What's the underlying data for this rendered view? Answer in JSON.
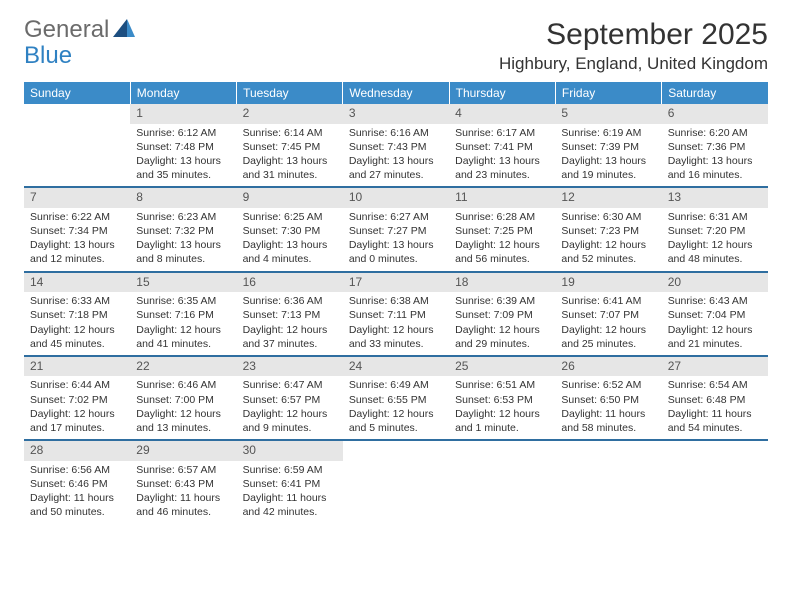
{
  "logo": {
    "word1": "General",
    "word2": "Blue"
  },
  "title": "September 2025",
  "location": "Highbury, England, United Kingdom",
  "colors": {
    "header_bg": "#3b8bc8",
    "row_divider": "#2f6ea0",
    "daynum_bg": "#e6e6e6",
    "text": "#333333",
    "logo_gray": "#6b6b6b",
    "logo_blue": "#2f81c2"
  },
  "weekdays": [
    "Sunday",
    "Monday",
    "Tuesday",
    "Wednesday",
    "Thursday",
    "Friday",
    "Saturday"
  ],
  "weeks": [
    [
      null,
      {
        "n": "1",
        "sr": "Sunrise: 6:12 AM",
        "ss": "Sunset: 7:48 PM",
        "dl": "Daylight: 13 hours and 35 minutes."
      },
      {
        "n": "2",
        "sr": "Sunrise: 6:14 AM",
        "ss": "Sunset: 7:45 PM",
        "dl": "Daylight: 13 hours and 31 minutes."
      },
      {
        "n": "3",
        "sr": "Sunrise: 6:16 AM",
        "ss": "Sunset: 7:43 PM",
        "dl": "Daylight: 13 hours and 27 minutes."
      },
      {
        "n": "4",
        "sr": "Sunrise: 6:17 AM",
        "ss": "Sunset: 7:41 PM",
        "dl": "Daylight: 13 hours and 23 minutes."
      },
      {
        "n": "5",
        "sr": "Sunrise: 6:19 AM",
        "ss": "Sunset: 7:39 PM",
        "dl": "Daylight: 13 hours and 19 minutes."
      },
      {
        "n": "6",
        "sr": "Sunrise: 6:20 AM",
        "ss": "Sunset: 7:36 PM",
        "dl": "Daylight: 13 hours and 16 minutes."
      }
    ],
    [
      {
        "n": "7",
        "sr": "Sunrise: 6:22 AM",
        "ss": "Sunset: 7:34 PM",
        "dl": "Daylight: 13 hours and 12 minutes."
      },
      {
        "n": "8",
        "sr": "Sunrise: 6:23 AM",
        "ss": "Sunset: 7:32 PM",
        "dl": "Daylight: 13 hours and 8 minutes."
      },
      {
        "n": "9",
        "sr": "Sunrise: 6:25 AM",
        "ss": "Sunset: 7:30 PM",
        "dl": "Daylight: 13 hours and 4 minutes."
      },
      {
        "n": "10",
        "sr": "Sunrise: 6:27 AM",
        "ss": "Sunset: 7:27 PM",
        "dl": "Daylight: 13 hours and 0 minutes."
      },
      {
        "n": "11",
        "sr": "Sunrise: 6:28 AM",
        "ss": "Sunset: 7:25 PM",
        "dl": "Daylight: 12 hours and 56 minutes."
      },
      {
        "n": "12",
        "sr": "Sunrise: 6:30 AM",
        "ss": "Sunset: 7:23 PM",
        "dl": "Daylight: 12 hours and 52 minutes."
      },
      {
        "n": "13",
        "sr": "Sunrise: 6:31 AM",
        "ss": "Sunset: 7:20 PM",
        "dl": "Daylight: 12 hours and 48 minutes."
      }
    ],
    [
      {
        "n": "14",
        "sr": "Sunrise: 6:33 AM",
        "ss": "Sunset: 7:18 PM",
        "dl": "Daylight: 12 hours and 45 minutes."
      },
      {
        "n": "15",
        "sr": "Sunrise: 6:35 AM",
        "ss": "Sunset: 7:16 PM",
        "dl": "Daylight: 12 hours and 41 minutes."
      },
      {
        "n": "16",
        "sr": "Sunrise: 6:36 AM",
        "ss": "Sunset: 7:13 PM",
        "dl": "Daylight: 12 hours and 37 minutes."
      },
      {
        "n": "17",
        "sr": "Sunrise: 6:38 AM",
        "ss": "Sunset: 7:11 PM",
        "dl": "Daylight: 12 hours and 33 minutes."
      },
      {
        "n": "18",
        "sr": "Sunrise: 6:39 AM",
        "ss": "Sunset: 7:09 PM",
        "dl": "Daylight: 12 hours and 29 minutes."
      },
      {
        "n": "19",
        "sr": "Sunrise: 6:41 AM",
        "ss": "Sunset: 7:07 PM",
        "dl": "Daylight: 12 hours and 25 minutes."
      },
      {
        "n": "20",
        "sr": "Sunrise: 6:43 AM",
        "ss": "Sunset: 7:04 PM",
        "dl": "Daylight: 12 hours and 21 minutes."
      }
    ],
    [
      {
        "n": "21",
        "sr": "Sunrise: 6:44 AM",
        "ss": "Sunset: 7:02 PM",
        "dl": "Daylight: 12 hours and 17 minutes."
      },
      {
        "n": "22",
        "sr": "Sunrise: 6:46 AM",
        "ss": "Sunset: 7:00 PM",
        "dl": "Daylight: 12 hours and 13 minutes."
      },
      {
        "n": "23",
        "sr": "Sunrise: 6:47 AM",
        "ss": "Sunset: 6:57 PM",
        "dl": "Daylight: 12 hours and 9 minutes."
      },
      {
        "n": "24",
        "sr": "Sunrise: 6:49 AM",
        "ss": "Sunset: 6:55 PM",
        "dl": "Daylight: 12 hours and 5 minutes."
      },
      {
        "n": "25",
        "sr": "Sunrise: 6:51 AM",
        "ss": "Sunset: 6:53 PM",
        "dl": "Daylight: 12 hours and 1 minute."
      },
      {
        "n": "26",
        "sr": "Sunrise: 6:52 AM",
        "ss": "Sunset: 6:50 PM",
        "dl": "Daylight: 11 hours and 58 minutes."
      },
      {
        "n": "27",
        "sr": "Sunrise: 6:54 AM",
        "ss": "Sunset: 6:48 PM",
        "dl": "Daylight: 11 hours and 54 minutes."
      }
    ],
    [
      {
        "n": "28",
        "sr": "Sunrise: 6:56 AM",
        "ss": "Sunset: 6:46 PM",
        "dl": "Daylight: 11 hours and 50 minutes."
      },
      {
        "n": "29",
        "sr": "Sunrise: 6:57 AM",
        "ss": "Sunset: 6:43 PM",
        "dl": "Daylight: 11 hours and 46 minutes."
      },
      {
        "n": "30",
        "sr": "Sunrise: 6:59 AM",
        "ss": "Sunset: 6:41 PM",
        "dl": "Daylight: 11 hours and 42 minutes."
      },
      null,
      null,
      null,
      null
    ]
  ]
}
